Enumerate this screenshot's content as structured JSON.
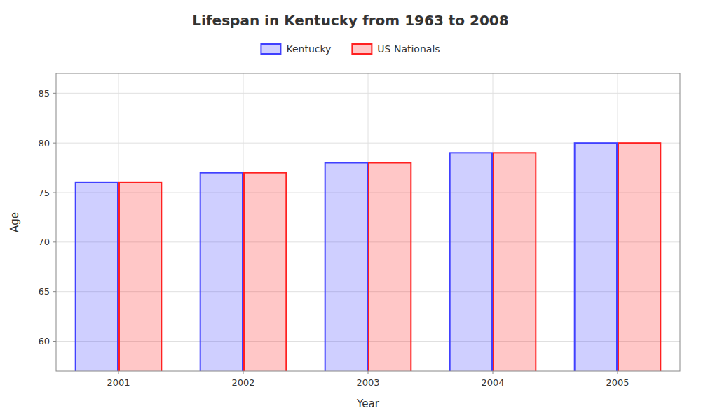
{
  "chart_data": {
    "type": "bar",
    "title": "Lifespan in Kentucky from 1963 to 2008",
    "xlabel": "Year",
    "ylabel": "Age",
    "categories": [
      2001,
      2002,
      2003,
      2004,
      2005
    ],
    "series": [
      {
        "name": "Kentucky",
        "color": "#4040ff",
        "values": [
          76,
          77,
          78,
          79,
          80
        ]
      },
      {
        "name": "US Nationals",
        "color": "#ff2020",
        "values": [
          76,
          77,
          78,
          79,
          80
        ]
      }
    ],
    "ylim": [
      57,
      87
    ],
    "yticks": [
      60,
      65,
      70,
      75,
      80,
      85
    ],
    "grid": true,
    "legend": "upper center"
  }
}
